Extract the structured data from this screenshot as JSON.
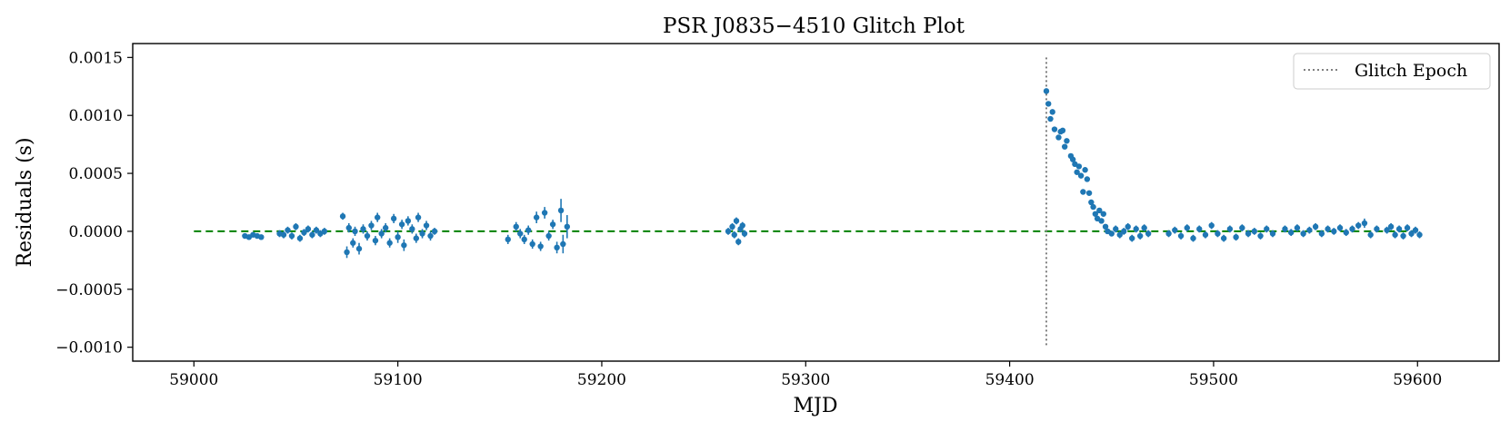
{
  "chart_data": {
    "type": "scatter",
    "title": "PSR J0835−4510 Glitch Plot",
    "xlabel": "MJD",
    "ylabel": "Residuals (s)",
    "xlim": [
      58970,
      59640
    ],
    "ylim": [
      -0.00112,
      0.00162
    ],
    "xticks": [
      59000,
      59100,
      59200,
      59300,
      59400,
      59500,
      59600
    ],
    "xtick_labels": [
      "59000",
      "59100",
      "59200",
      "59300",
      "59400",
      "59500",
      "59600"
    ],
    "yticks": [
      -0.001,
      -0.0005,
      0.0,
      0.0005,
      0.001,
      0.0015
    ],
    "ytick_labels": [
      "−0.0010",
      "−0.0005",
      "0.0000",
      "0.0005",
      "0.0010",
      "0.0015"
    ],
    "grid": false,
    "legend": {
      "position": "top-right",
      "entries": [
        "Glitch Epoch"
      ]
    },
    "colors": {
      "points": "#1f77b4",
      "reference_line": "#008000",
      "glitch_line": "#808080"
    },
    "reference_line": {
      "style": "dashed",
      "y": 0.0,
      "x_start": 59000,
      "x_end": 59600
    },
    "glitch_epoch": {
      "label": "Glitch Epoch",
      "x": 59418,
      "y_range": [
        -0.001,
        0.0015
      ]
    },
    "series": [
      {
        "style": "errorbar-points",
        "points": [
          [
            59025,
            -4e-05,
            2e-05
          ],
          [
            59027,
            -5e-05,
            2e-05
          ],
          [
            59029,
            -3e-05,
            2e-05
          ],
          [
            59031,
            -4e-05,
            2e-05
          ],
          [
            59033,
            -5e-05,
            2e-05
          ],
          [
            59042,
            -2e-05,
            3e-05
          ],
          [
            59044,
            -3e-05,
            3e-05
          ],
          [
            59046,
            1e-05,
            3e-05
          ],
          [
            59048,
            -4e-05,
            3e-05
          ],
          [
            59050,
            4e-05,
            3e-05
          ],
          [
            59052,
            -6e-05,
            3e-05
          ],
          [
            59054,
            -1e-05,
            3e-05
          ],
          [
            59056,
            2e-05,
            3e-05
          ],
          [
            59058,
            -3e-05,
            3e-05
          ],
          [
            59060,
            1e-05,
            3e-05
          ],
          [
            59062,
            -2e-05,
            3e-05
          ],
          [
            59064,
            0.0,
            3e-05
          ],
          [
            59073,
            0.00013,
            3e-05
          ],
          [
            59075,
            -0.00018,
            5e-05
          ],
          [
            59076,
            3e-05,
            4e-05
          ],
          [
            59078,
            -0.0001,
            4e-05
          ],
          [
            59079,
            0.0,
            4e-05
          ],
          [
            59081,
            -0.00015,
            5e-05
          ],
          [
            59083,
            2e-05,
            4e-05
          ],
          [
            59085,
            -4e-05,
            4e-05
          ],
          [
            59087,
            5e-05,
            4e-05
          ],
          [
            59089,
            -8e-05,
            4e-05
          ],
          [
            59090,
            0.00012,
            4e-05
          ],
          [
            59092,
            -2e-05,
            4e-05
          ],
          [
            59094,
            3e-05,
            4e-05
          ],
          [
            59096,
            -0.0001,
            4e-05
          ],
          [
            59098,
            0.00011,
            4e-05
          ],
          [
            59100,
            -5e-05,
            5e-05
          ],
          [
            59102,
            6e-05,
            4e-05
          ],
          [
            59103,
            -0.00012,
            5e-05
          ],
          [
            59105,
            9e-05,
            4e-05
          ],
          [
            59107,
            2e-05,
            4e-05
          ],
          [
            59109,
            -6e-05,
            4e-05
          ],
          [
            59110,
            0.00012,
            4e-05
          ],
          [
            59112,
            -2e-05,
            4e-05
          ],
          [
            59114,
            5e-05,
            4e-05
          ],
          [
            59116,
            -4e-05,
            4e-05
          ],
          [
            59118,
            0.0,
            3e-05
          ],
          [
            59154,
            -7e-05,
            4e-05
          ],
          [
            59158,
            4e-05,
            4e-05
          ],
          [
            59160,
            -2e-05,
            4e-05
          ],
          [
            59162,
            -7e-05,
            4e-05
          ],
          [
            59164,
            1e-05,
            4e-05
          ],
          [
            59166,
            -0.00011,
            4e-05
          ],
          [
            59168,
            0.00012,
            5e-05
          ],
          [
            59170,
            -0.00013,
            4e-05
          ],
          [
            59172,
            0.00016,
            5e-05
          ],
          [
            59174,
            -4e-05,
            4e-05
          ],
          [
            59176,
            6e-05,
            4e-05
          ],
          [
            59178,
            -0.00014,
            5e-05
          ],
          [
            59180,
            0.00018,
            0.0001
          ],
          [
            59181,
            -0.00011,
            8e-05
          ],
          [
            59183,
            4e-05,
            0.0001
          ],
          [
            59262,
            0.0,
            3e-05
          ],
          [
            59264,
            4e-05,
            3e-05
          ],
          [
            59265,
            -3e-05,
            3e-05
          ],
          [
            59266,
            9e-05,
            3e-05
          ],
          [
            59267,
            -9e-05,
            3e-05
          ],
          [
            59268,
            2e-05,
            3e-05
          ],
          [
            59269,
            5e-05,
            3e-05
          ],
          [
            59270,
            -2e-05,
            3e-05
          ],
          [
            59418,
            0.00121,
            2e-05
          ],
          [
            59419,
            0.0011,
            2e-05
          ],
          [
            59420,
            0.00097,
            2e-05
          ],
          [
            59421,
            0.00103,
            2e-05
          ],
          [
            59422,
            0.00088,
            2e-05
          ],
          [
            59424,
            0.00081,
            2e-05
          ],
          [
            59425,
            0.00086,
            2e-05
          ],
          [
            59426,
            0.00087,
            2e-05
          ],
          [
            59427,
            0.00073,
            2e-05
          ],
          [
            59428,
            0.00078,
            2e-05
          ],
          [
            59430,
            0.00065,
            2e-05
          ],
          [
            59431,
            0.00062,
            2e-05
          ],
          [
            59432,
            0.00058,
            2e-05
          ],
          [
            59433,
            0.00051,
            2e-05
          ],
          [
            59434,
            0.00056,
            2e-05
          ],
          [
            59435,
            0.00048,
            2e-05
          ],
          [
            59436,
            0.00034,
            2e-05
          ],
          [
            59437,
            0.00053,
            2e-05
          ],
          [
            59438,
            0.00045,
            2e-05
          ],
          [
            59439,
            0.00033,
            2e-05
          ],
          [
            59440,
            0.00025,
            2e-05
          ],
          [
            59441,
            0.00021,
            2e-05
          ],
          [
            59442,
            0.00015,
            2e-05
          ],
          [
            59443,
            0.00011,
            2e-05
          ],
          [
            59444,
            0.00018,
            2e-05
          ],
          [
            59445,
            9e-05,
            2e-05
          ],
          [
            59446,
            0.00015,
            2e-05
          ],
          [
            59447,
            4e-05,
            2e-05
          ],
          [
            59448,
            0.0,
            2e-05
          ],
          [
            59450,
            -2e-05,
            2e-05
          ],
          [
            59452,
            2e-05,
            3e-05
          ],
          [
            59454,
            -3e-05,
            3e-05
          ],
          [
            59456,
            0.0,
            3e-05
          ],
          [
            59458,
            4e-05,
            3e-05
          ],
          [
            59460,
            -6e-05,
            3e-05
          ],
          [
            59462,
            2e-05,
            3e-05
          ],
          [
            59464,
            -4e-05,
            3e-05
          ],
          [
            59466,
            3e-05,
            3e-05
          ],
          [
            59468,
            -2e-05,
            3e-05
          ],
          [
            59478,
            -2e-05,
            3e-05
          ],
          [
            59481,
            1e-05,
            3e-05
          ],
          [
            59484,
            -4e-05,
            3e-05
          ],
          [
            59487,
            3e-05,
            3e-05
          ],
          [
            59490,
            -6e-05,
            3e-05
          ],
          [
            59493,
            2e-05,
            3e-05
          ],
          [
            59496,
            -3e-05,
            3e-05
          ],
          [
            59499,
            5e-05,
            3e-05
          ],
          [
            59502,
            -2e-05,
            3e-05
          ],
          [
            59505,
            -6e-05,
            3e-05
          ],
          [
            59508,
            2e-05,
            3e-05
          ],
          [
            59511,
            -5e-05,
            3e-05
          ],
          [
            59514,
            3e-05,
            3e-05
          ],
          [
            59517,
            -2e-05,
            3e-05
          ],
          [
            59520,
            0.0,
            3e-05
          ],
          [
            59523,
            -4e-05,
            3e-05
          ],
          [
            59526,
            2e-05,
            3e-05
          ],
          [
            59529,
            -2e-05,
            3e-05
          ],
          [
            59535,
            2e-05,
            3e-05
          ],
          [
            59538,
            -1e-05,
            3e-05
          ],
          [
            59541,
            3e-05,
            3e-05
          ],
          [
            59544,
            -2e-05,
            3e-05
          ],
          [
            59547,
            1e-05,
            3e-05
          ],
          [
            59550,
            4e-05,
            3e-05
          ],
          [
            59553,
            -2e-05,
            3e-05
          ],
          [
            59556,
            2e-05,
            3e-05
          ],
          [
            59559,
            0.0,
            3e-05
          ],
          [
            59562,
            3e-05,
            3e-05
          ],
          [
            59565,
            -1e-05,
            3e-05
          ],
          [
            59568,
            2e-05,
            3e-05
          ],
          [
            59571,
            5e-05,
            3e-05
          ],
          [
            59574,
            7e-05,
            4e-05
          ],
          [
            59577,
            -3e-05,
            3e-05
          ],
          [
            59580,
            2e-05,
            3e-05
          ],
          [
            59585,
            1e-05,
            3e-05
          ],
          [
            59587,
            4e-05,
            3e-05
          ],
          [
            59589,
            -3e-05,
            3e-05
          ],
          [
            59591,
            2e-05,
            3e-05
          ],
          [
            59593,
            -4e-05,
            3e-05
          ],
          [
            59595,
            3e-05,
            3e-05
          ],
          [
            59597,
            -2e-05,
            3e-05
          ],
          [
            59599,
            1e-05,
            3e-05
          ],
          [
            59601,
            -3e-05,
            3e-05
          ]
        ]
      }
    ]
  }
}
